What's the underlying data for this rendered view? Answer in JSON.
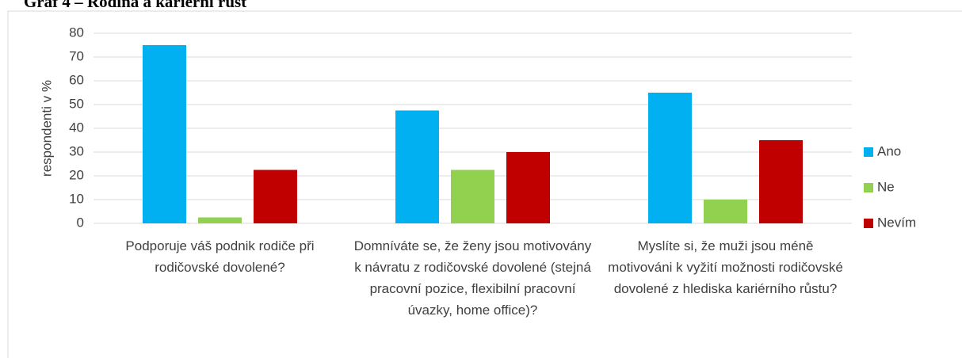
{
  "chart_data": {
    "type": "bar",
    "title": "Graf 4 – Rodina a kariérní růst",
    "y_label": "respondenti v %",
    "categories": [
      "Podporuje váš podnik rodiče při rodičovské dovolené?",
      "Domníváte se, že ženy jsou motivovány k návratu z rodičovské dovolené (stejná pracovní pozice, flexibilní pracovní úvazky, home office)?",
      "Myslíte si, že muži jsou méně motivováni k vyžití možnosti rodičovské dovolené z hlediska kariérního růstu?"
    ],
    "series": [
      {
        "name": "Ano",
        "color": "#00b0f0",
        "values": [
          75,
          47.5,
          55
        ]
      },
      {
        "name": "Ne",
        "color": "#92d050",
        "values": [
          2.5,
          22.5,
          10
        ]
      },
      {
        "name": "Nevím",
        "color": "#c00000",
        "values": [
          22.5,
          30,
          35
        ]
      }
    ],
    "ylim": [
      0,
      80
    ],
    "yticks": [
      0,
      10,
      20,
      30,
      40,
      50,
      60,
      70,
      80
    ],
    "grid": true,
    "legend": "right"
  }
}
